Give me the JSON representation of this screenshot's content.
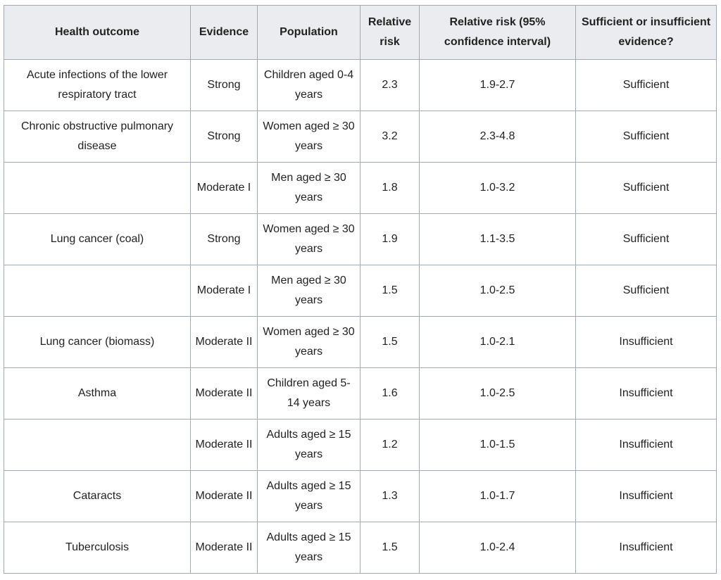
{
  "table": {
    "headers": [
      "Health outcome",
      "Evidence",
      "Population",
      "Relative risk",
      "Relative risk (95% confidence interval)",
      "Sufficient or insufficient evidence?"
    ],
    "rows": [
      [
        "Acute infections of the lower respiratory tract",
        "Strong",
        "Children aged 0-4 years",
        "2.3",
        "1.9-2.7",
        "Sufficient"
      ],
      [
        "Chronic obstructive pulmonary disease",
        "Strong",
        "Women aged ≥ 30 years",
        "3.2",
        "2.3-4.8",
        "Sufficient"
      ],
      [
        "",
        "Moderate I",
        "Men aged ≥ 30 years",
        "1.8",
        "1.0-3.2",
        "Sufficient"
      ],
      [
        "Lung cancer (coal)",
        "Strong",
        "Women aged ≥ 30 years",
        "1.9",
        "1.1-3.5",
        "Sufficient"
      ],
      [
        "",
        "Moderate I",
        "Men aged ≥ 30 years",
        "1.5",
        "1.0-2.5",
        "Sufficient"
      ],
      [
        "Lung cancer (biomass)",
        "Moderate II",
        "Women aged ≥ 30 years",
        "1.5",
        "1.0-2.1",
        "Insufficient"
      ],
      [
        "Asthma",
        "Moderate II",
        "Children aged 5-14 years",
        "1.6",
        "1.0-2.5",
        "Insufficient"
      ],
      [
        "",
        "Moderate II",
        "Adults aged ≥ 15 years",
        "1.2",
        "1.0-1.5",
        "Insufficient"
      ],
      [
        "Cataracts",
        "Moderate II",
        "Adults aged ≥ 15 years",
        "1.3",
        "1.0-1.7",
        "Insufficient"
      ],
      [
        "Tuberculosis",
        "Moderate II",
        "Adults aged ≥ 15 years",
        "1.5",
        "1.0-2.4",
        "Insufficient"
      ]
    ]
  }
}
